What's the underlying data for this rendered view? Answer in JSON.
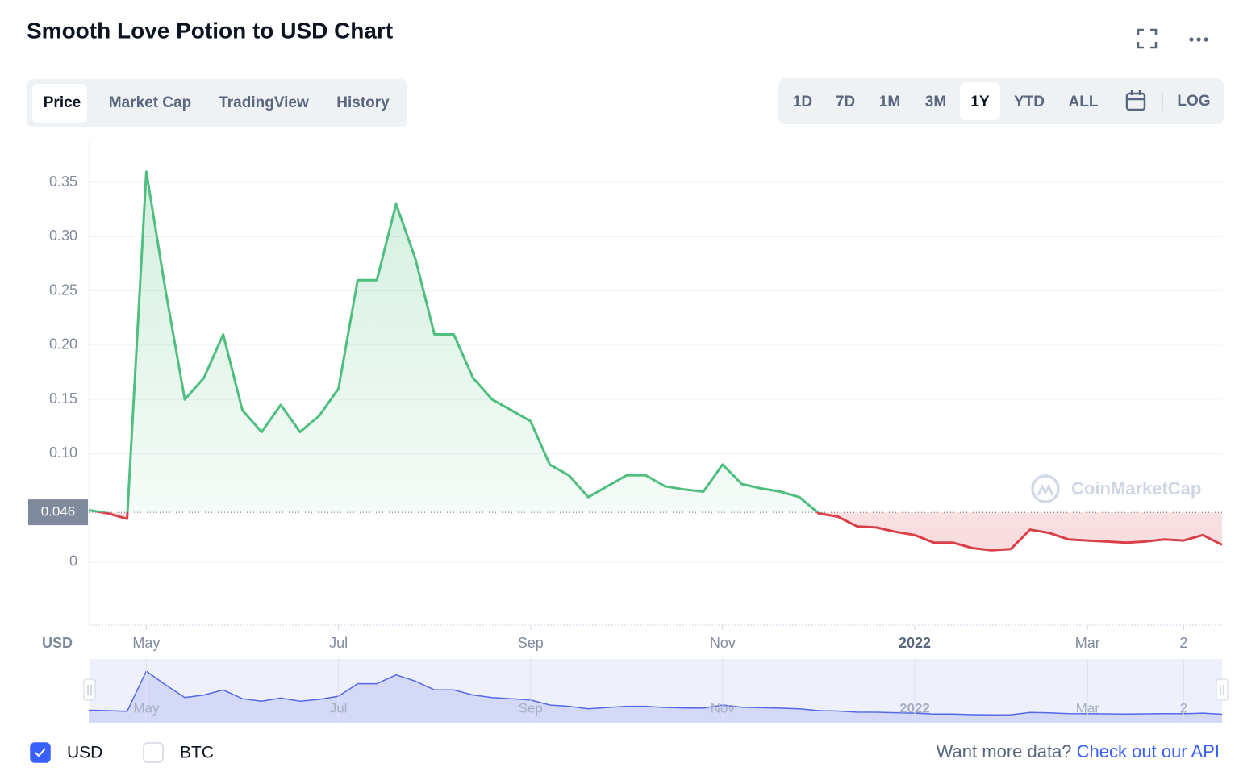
{
  "ui": {
    "title": "Smooth Love Potion to USD Chart",
    "tabs": [
      "Price",
      "Market Cap",
      "TradingView",
      "History"
    ],
    "selected_tab": 0,
    "ranges": [
      "1D",
      "7D",
      "1M",
      "3M",
      "1Y",
      "YTD",
      "ALL"
    ],
    "selected_range": 4,
    "log": "LOG",
    "watermark": "CoinMarketCap",
    "currencies": [
      "USD",
      "BTC"
    ],
    "checked": [
      true,
      false
    ],
    "footer_text": "Want more data?",
    "footer_link": "Check out our API"
  },
  "chart_data": {
    "type": "line",
    "y_axis_label": "USD",
    "categories": [
      null,
      null,
      null,
      "May",
      null,
      null,
      null,
      null,
      null,
      null,
      null,
      null,
      null,
      "Jul",
      null,
      null,
      null,
      null,
      null,
      null,
      null,
      null,
      null,
      "Sep",
      null,
      null,
      null,
      null,
      null,
      null,
      null,
      null,
      null,
      "Nov",
      null,
      null,
      null,
      null,
      null,
      null,
      null,
      null,
      null,
      "2022",
      null,
      null,
      null,
      null,
      null,
      null,
      null,
      null,
      "Mar",
      null,
      null,
      null,
      null,
      "2",
      null,
      null
    ],
    "values": [
      0.048,
      0.045,
      0.04,
      0.36,
      0.25,
      0.15,
      0.17,
      0.21,
      0.14,
      0.12,
      0.145,
      0.12,
      0.135,
      0.16,
      0.26,
      0.26,
      0.33,
      0.28,
      0.21,
      0.21,
      0.17,
      0.15,
      0.14,
      0.13,
      0.09,
      0.08,
      0.06,
      0.07,
      0.08,
      0.08,
      0.07,
      0.067,
      0.065,
      0.09,
      0.072,
      0.068,
      0.065,
      0.06,
      0.045,
      0.042,
      0.033,
      0.032,
      0.028,
      0.025,
      0.018,
      0.018,
      0.013,
      0.011,
      0.012,
      0.03,
      0.027,
      0.021,
      0.02,
      0.019,
      0.018,
      0.019,
      0.021,
      0.02,
      0.025,
      0.016
    ],
    "reference_line": 0.046,
    "up_color": "#4fbf7f",
    "down_color": "#d9404a",
    "ylim": [
      -0.058,
      0.388
    ],
    "yticks": [
      0,
      {
        "value": 0.1,
        "label": "0.10"
      },
      0.15,
      {
        "value": 0.2,
        "label": "0.20"
      },
      0.25,
      {
        "value": 0.3,
        "label": "0.30"
      },
      0.35
    ],
    "grid": true
  }
}
